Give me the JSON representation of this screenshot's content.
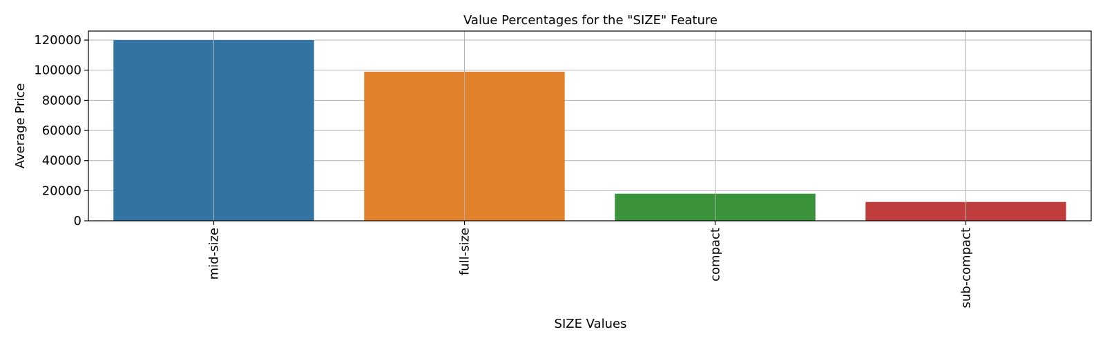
{
  "chart_data": {
    "type": "bar",
    "title": "Value Percentages for the \"SIZE\" Feature",
    "xlabel": "SIZE Values",
    "ylabel": "Average Price",
    "categories": [
      "mid-size",
      "full-size",
      "compact",
      "sub-compact"
    ],
    "values": [
      120000,
      99000,
      18000,
      12500
    ],
    "colors": [
      "#3274a1",
      "#e1812c",
      "#3a923a",
      "#c03d3e"
    ],
    "ylim": [
      0,
      126000
    ],
    "yticks": [
      0,
      20000,
      40000,
      60000,
      80000,
      100000,
      120000
    ],
    "ytick_labels": [
      "0",
      "20000",
      "40000",
      "60000",
      "80000",
      "100000",
      "120000"
    ],
    "grid": true,
    "xtick_rotation": "vertical"
  }
}
